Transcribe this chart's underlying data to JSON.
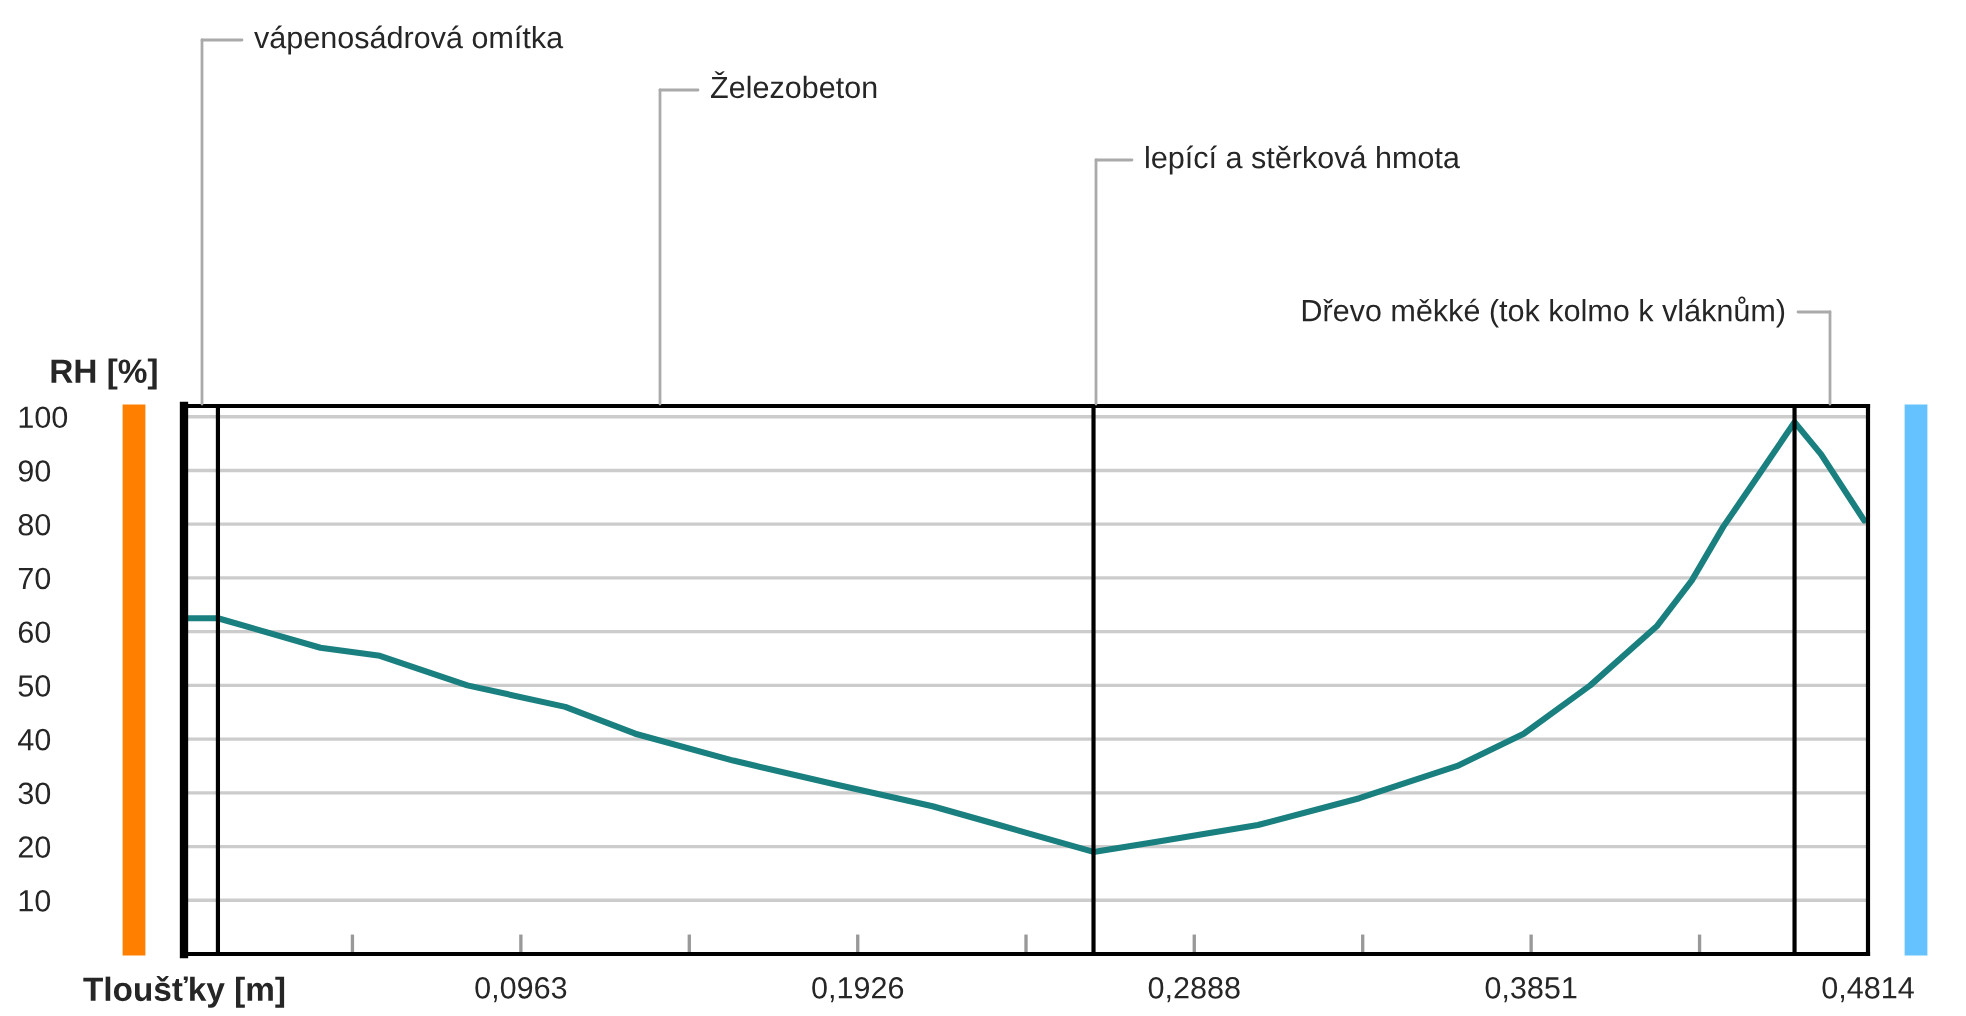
{
  "chart_data": {
    "type": "line",
    "xlabel": "Tloušťky [m]",
    "ylabel": "RH [%]",
    "x": [
      0.0006,
      0.0097,
      0.039,
      0.056,
      0.081,
      0.109,
      0.129,
      0.157,
      0.186,
      0.214,
      0.233,
      0.26,
      0.279,
      0.307,
      0.336,
      0.364,
      0.383,
      0.402,
      0.421,
      0.431,
      0.44,
      0.45,
      0.4604,
      0.468,
      0.4803
    ],
    "series": [
      {
        "color": "#1a7f7f",
        "values": [
          62.5,
          62.5,
          57,
          55.5,
          50,
          46,
          41,
          36,
          31.6,
          27.5,
          24,
          19,
          21,
          24,
          29,
          35,
          41,
          50,
          61,
          69.5,
          79.5,
          89,
          99,
          93,
          80.7
        ]
      }
    ],
    "xlim": [
      0,
      0.4814
    ],
    "ylim": [
      0,
      102
    ],
    "xticks": [
      {
        "value": 0.04815,
        "label": null
      },
      {
        "value": 0.0963,
        "label": "0,0963"
      },
      {
        "value": 0.14445,
        "label": null
      },
      {
        "value": 0.1926,
        "label": "0,1926"
      },
      {
        "value": 0.2407,
        "label": null
      },
      {
        "value": 0.2888,
        "label": "0,2888"
      },
      {
        "value": 0.33695,
        "label": null
      },
      {
        "value": 0.3851,
        "label": "0,3851"
      },
      {
        "value": 0.43325,
        "label": null
      },
      {
        "value": 0.4814,
        "label": "0,4814"
      }
    ],
    "yticks": [
      10,
      20,
      30,
      40,
      50,
      60,
      70,
      80,
      90,
      100
    ],
    "grid": "y",
    "marker": "none",
    "line_style": "solid",
    "ref_lines": [
      {
        "axis": "x",
        "value": 0.0097,
        "color": "#000000"
      },
      {
        "axis": "x",
        "value": 0.26,
        "color": "#000000"
      },
      {
        "axis": "x",
        "value": 0.4604,
        "color": "#000000"
      }
    ],
    "annotations": [
      "vápenosádrová omítka",
      "Železobeton",
      "lepící a stěrková hmota",
      "Dřevo měkké (tok kolmo k vláknům)"
    ]
  }
}
